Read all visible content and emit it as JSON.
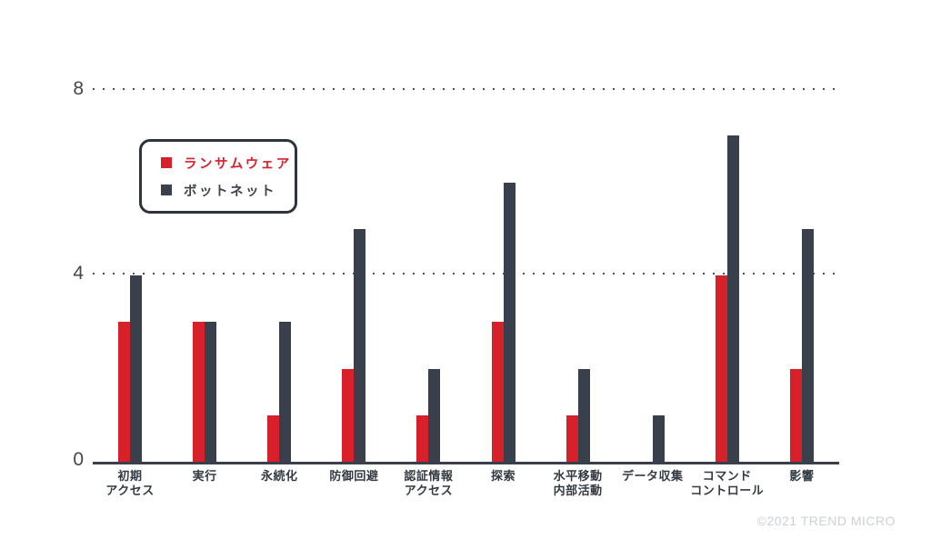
{
  "chart_data": {
    "type": "bar",
    "categories": [
      "初期\nアクセス",
      "実行",
      "永続化",
      "防御回避",
      "認証情報\nアクセス",
      "探索",
      "水平移動\n内部活動",
      "データ収集",
      "コマンド\nコントロール",
      "影響"
    ],
    "series": [
      {
        "id": "ransomware",
        "name": "ランサムウェア",
        "color": "#d8202a",
        "values": [
          3,
          3,
          1,
          2,
          1,
          3,
          1,
          0,
          4,
          2
        ]
      },
      {
        "id": "botnet",
        "name": "ボットネット",
        "color": "#3a404b",
        "values": [
          4,
          3,
          3,
          5,
          2,
          6,
          2,
          1,
          7,
          5
        ]
      }
    ],
    "title": "",
    "xlabel": "",
    "ylabel": "",
    "ylim": [
      0,
      8
    ],
    "yticks": [
      0,
      4,
      8
    ],
    "grid": "horizontal dotted at 4 and 8",
    "legend_position": "upper-left"
  },
  "footer": {
    "copyright": "©2021 TREND MICRO"
  },
  "colors": {
    "ransomware_red": "#d8202a",
    "botnet_dark": "#3a404b",
    "axis_line": "#394049",
    "gridline_dots": "#4b515a",
    "tick_text": "#42474e",
    "label_text": "#333a42",
    "copyright_text": "#ccd0d4",
    "background": "#ffffff"
  }
}
